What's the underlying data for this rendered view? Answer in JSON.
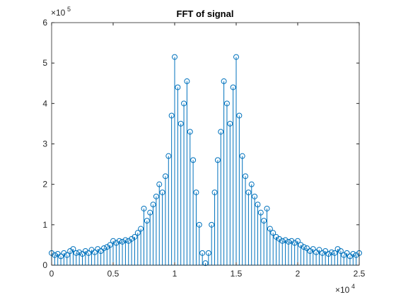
{
  "chart_data": {
    "type": "stem",
    "title": "FFT of signal",
    "color": "#0072bd",
    "xlim": [
      0,
      25000
    ],
    "ylim": [
      0,
      600000
    ],
    "xticks": [
      0,
      {
        "value": 5000,
        "label": "0.5"
      },
      {
        "value": 10000,
        "label": "1"
      },
      {
        "value": 15000,
        "label": "1.5"
      },
      {
        "value": 20000,
        "label": "2"
      },
      {
        "value": 25000,
        "label": "2.5"
      }
    ],
    "yticks": [
      0,
      {
        "value": 100000,
        "label": "1"
      },
      {
        "value": 200000,
        "label": "2"
      },
      {
        "value": 300000,
        "label": "3"
      },
      {
        "value": 400000,
        "label": "4"
      },
      {
        "value": 500000,
        "label": "5"
      },
      {
        "value": 600000,
        "label": "6"
      }
    ],
    "x_exponent": {
      "base": "×10",
      "power": "4"
    },
    "y_exponent": {
      "base": "×10",
      "power": "5"
    },
    "x": [
      0,
      250,
      500,
      750,
      1000,
      1250,
      1500,
      1750,
      2000,
      2250,
      2500,
      2750,
      3000,
      3250,
      3500,
      3750,
      4000,
      4250,
      4500,
      4750,
      5000,
      5250,
      5500,
      5750,
      6000,
      6250,
      6500,
      6750,
      7000,
      7250,
      7500,
      7750,
      8000,
      8250,
      8500,
      8750,
      9000,
      9250,
      9500,
      9750,
      10000,
      10250,
      10500,
      10750,
      11000,
      11250,
      11500,
      11750,
      12000,
      12250,
      12500,
      12750,
      13000,
      13250,
      13500,
      13750,
      14000,
      14250,
      14500,
      14750,
      15000,
      15250,
      15500,
      15750,
      16000,
      16250,
      16500,
      16750,
      17000,
      17250,
      17500,
      17750,
      18000,
      18250,
      18500,
      18750,
      19000,
      19250,
      19500,
      19750,
      20000,
      20250,
      20500,
      20750,
      21000,
      21250,
      21500,
      21750,
      22000,
      22250,
      22500,
      22750,
      23000,
      23250,
      23500,
      23750,
      24000,
      24250,
      24500,
      24750,
      25000
    ],
    "values": [
      30000,
      25000,
      28000,
      22000,
      30000,
      25000,
      35000,
      40000,
      30000,
      32000,
      28000,
      35000,
      30000,
      38000,
      32000,
      40000,
      35000,
      42000,
      45000,
      50000,
      60000,
      55000,
      60000,
      58000,
      62000,
      60000,
      65000,
      70000,
      80000,
      90000,
      140000,
      110000,
      130000,
      150000,
      170000,
      200000,
      180000,
      220000,
      270000,
      370000,
      515000,
      440000,
      350000,
      400000,
      455000,
      330000,
      260000,
      180000,
      100000,
      30000,
      5000,
      30000,
      100000,
      180000,
      260000,
      330000,
      455000,
      400000,
      350000,
      440000,
      515000,
      370000,
      270000,
      220000,
      180000,
      200000,
      170000,
      150000,
      130000,
      110000,
      140000,
      90000,
      80000,
      70000,
      65000,
      60000,
      62000,
      58000,
      60000,
      55000,
      60000,
      50000,
      45000,
      42000,
      35000,
      40000,
      32000,
      38000,
      30000,
      35000,
      28000,
      32000,
      30000,
      40000,
      35000,
      25000,
      30000,
      22000,
      28000,
      25000,
      30000
    ]
  }
}
